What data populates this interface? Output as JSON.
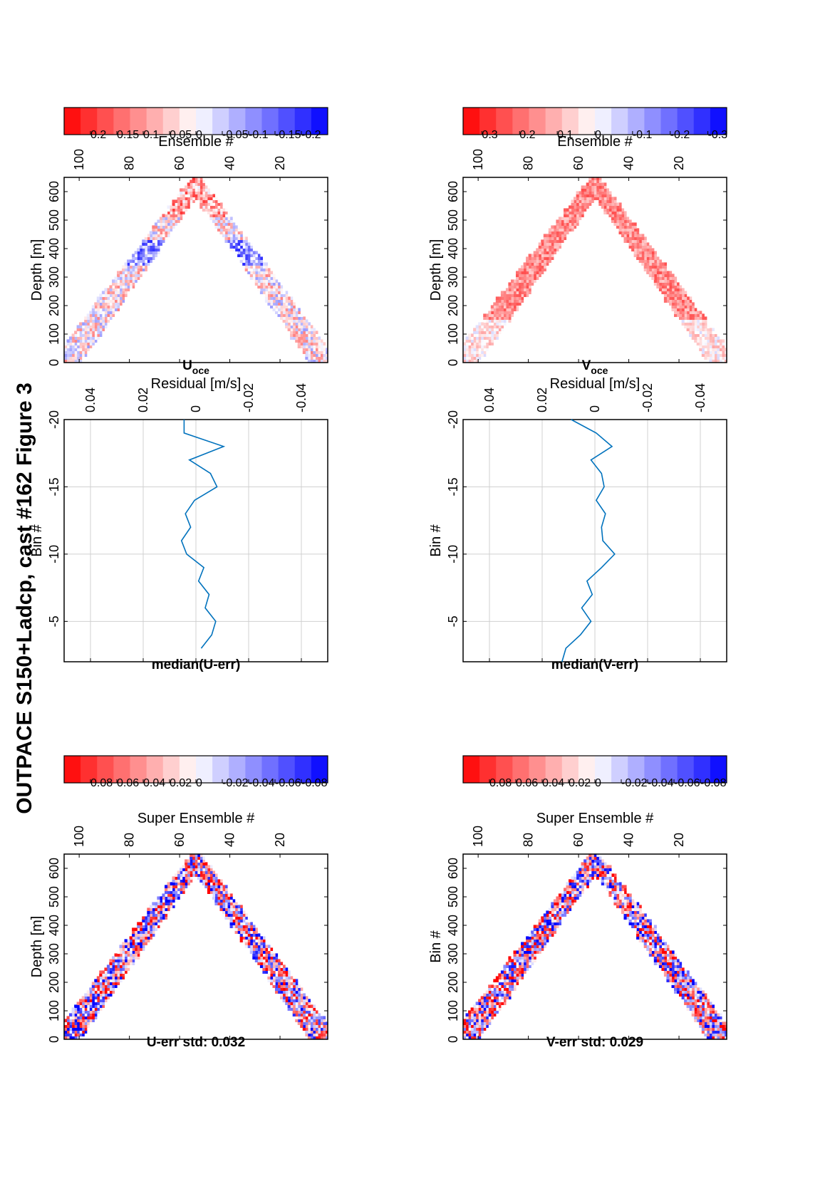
{
  "figure": {
    "title": "OUTPACE S150+Ladcp, cast #162  Figure 3"
  },
  "panels": {
    "u_err": {
      "title": "U-err std: 0.032"
    },
    "v_err": {
      "title": "V-err std: 0.029"
    },
    "u_res": {
      "title": "median(U-err)"
    },
    "v_res": {
      "title": "median(V-err)"
    },
    "u_oce": {
      "title_main": "U",
      "title_sub": "oce"
    },
    "v_oce": {
      "title_main": "V",
      "title_sub": "oce"
    }
  },
  "chart_data": [
    {
      "id": "u_err",
      "type": "heatmap",
      "title": "U-err std: 0.032",
      "xlabel": "Super Ensemble #",
      "ylabel": "Depth [m]",
      "xlim": [
        1,
        106
      ],
      "ylim": [
        0,
        650
      ],
      "x_ticks": [
        20,
        40,
        60,
        80,
        100
      ],
      "y_ticks": [
        0,
        100,
        200,
        300,
        400,
        500,
        600
      ],
      "turn_ensemble": 53,
      "max_depth": 640,
      "colorbar": {
        "ticks": [
          0.08,
          0.06,
          0.04,
          0.02,
          0,
          -0.02,
          -0.04,
          -0.06,
          -0.08
        ],
        "labels": [
          "0.08",
          "0.06",
          "0.04",
          "0.02",
          "0",
          "-0.02",
          "-0.04",
          "-0.06",
          "-0.08"
        ],
        "range": [
          -0.1,
          0.1
        ]
      },
      "color_max": "#ff0000",
      "color_min": "#0000ff"
    },
    {
      "id": "v_err",
      "type": "heatmap",
      "title": "V-err std: 0.029",
      "xlabel": "Super Ensemble #",
      "ylabel": "Bin #",
      "xlim": [
        1,
        106
      ],
      "ylim": [
        0,
        650
      ],
      "x_ticks": [
        20,
        40,
        60,
        80,
        100
      ],
      "y_ticks": [
        0,
        100,
        200,
        300,
        400,
        500,
        600
      ],
      "turn_ensemble": 53,
      "max_depth": 640,
      "colorbar": {
        "ticks": [
          0.08,
          0.06,
          0.04,
          0.02,
          0,
          -0.02,
          -0.04,
          -0.06,
          -0.08
        ],
        "labels": [
          "0.08",
          "0.06",
          "0.04",
          "0.02",
          "0",
          "-0.02",
          "-0.04",
          "-0.06",
          "-0.08"
        ],
        "range": [
          -0.1,
          0.1
        ]
      },
      "color_max": "#ff0000",
      "color_min": "#0000ff"
    },
    {
      "id": "u_res",
      "type": "line",
      "title": "median(U-err)",
      "xlabel": "Residual [m/s]",
      "ylabel": "Bin #",
      "xlim": [
        -0.05,
        0.05
      ],
      "ylim": [
        -20,
        -2
      ],
      "x_ticks": [
        -0.04,
        -0.02,
        0,
        0.02,
        0.04
      ],
      "x_tick_labels": [
        "-0.04",
        "-0.02",
        "0",
        "0.02",
        "0.04"
      ],
      "y_ticks": [
        -5,
        -10,
        -15,
        -20
      ],
      "y_tick_labels": [
        "-5",
        "-10",
        "-15",
        "-20"
      ],
      "grid": true,
      "line_color": "#0072bd",
      "bins": [
        -3,
        -4,
        -5,
        -6,
        -7,
        -8,
        -9,
        -10,
        -11,
        -12,
        -13,
        -14,
        -15,
        -16,
        -17,
        -18,
        -19,
        -20
      ],
      "values": [
        -0.002,
        -0.006,
        -0.0075,
        -0.0035,
        -0.005,
        -0.001,
        -0.003,
        0.0035,
        0.0055,
        0.002,
        0.004,
        0.0005,
        -0.008,
        -0.0055,
        0.0025,
        -0.0105,
        0.0045,
        0.0045
      ]
    },
    {
      "id": "v_res",
      "type": "line",
      "title": "median(V-err)",
      "xlabel": "Residual [m/s]",
      "ylabel": "Bin #",
      "xlim": [
        -0.05,
        0.05
      ],
      "ylim": [
        -20,
        -2
      ],
      "x_ticks": [
        -0.04,
        -0.02,
        0,
        0.02,
        0.04
      ],
      "x_tick_labels": [
        "-0.04",
        "-0.02",
        "0",
        "0.02",
        "0.04"
      ],
      "y_ticks": [
        -5,
        -10,
        -15,
        -20
      ],
      "y_tick_labels": [
        "-5",
        "-10",
        "-15",
        "-20"
      ],
      "grid": true,
      "line_color": "#0072bd",
      "bins": [
        -2,
        -3,
        -4,
        -5,
        -6,
        -7,
        -8,
        -9,
        -10,
        -11,
        -12,
        -13,
        -14,
        -15,
        -16,
        -17,
        -18,
        -19,
        -20
      ],
      "values": [
        0.0125,
        0.011,
        0.0055,
        0.0015,
        0.005,
        0.001,
        0.003,
        -0.0025,
        -0.0075,
        -0.003,
        -0.0025,
        -0.004,
        -0.0005,
        -0.0035,
        -0.0025,
        0.0015,
        -0.0065,
        -0.0005,
        0.009
      ]
    },
    {
      "id": "u_oce",
      "type": "heatmap",
      "title": "U oce",
      "xlabel": "Ensemble #",
      "ylabel": "Depth [m]",
      "xlim": [
        1,
        106
      ],
      "ylim": [
        0,
        650
      ],
      "x_ticks": [
        20,
        40,
        60,
        80,
        100
      ],
      "y_ticks": [
        0,
        100,
        200,
        300,
        400,
        500,
        600
      ],
      "turn_ensemble": 53,
      "max_depth": 640,
      "colorbar": {
        "ticks": [
          0.2,
          0.15,
          0.1,
          0.05,
          0,
          -0.05,
          -0.1,
          -0.15,
          -0.2
        ],
        "labels": [
          "0.2",
          "0.15",
          "0.1",
          "0.05",
          "0",
          "-0.05",
          "-0.1",
          "-0.15",
          "-0.2"
        ],
        "range": [
          -0.25,
          0.25
        ]
      },
      "color_max": "#ff0000",
      "color_min": "#0000ff"
    },
    {
      "id": "v_oce",
      "type": "heatmap",
      "title": "V oce",
      "xlabel": "Ensemble #",
      "ylabel": "Depth [m]",
      "xlim": [
        1,
        106
      ],
      "ylim": [
        0,
        650
      ],
      "x_ticks": [
        20,
        40,
        60,
        80,
        100
      ],
      "y_ticks": [
        0,
        100,
        200,
        300,
        400,
        500,
        600
      ],
      "turn_ensemble": 53,
      "max_depth": 640,
      "colorbar": {
        "ticks": [
          0.3,
          0.2,
          0.1,
          0,
          -0.1,
          -0.2,
          -0.3
        ],
        "labels": [
          "0.3",
          "0.2",
          "0.1",
          "0",
          "-0.1",
          "-0.2",
          "-0.3"
        ],
        "range": [
          -0.35,
          0.35
        ]
      },
      "color_max": "#ff0000",
      "color_min": "#0000ff"
    }
  ]
}
